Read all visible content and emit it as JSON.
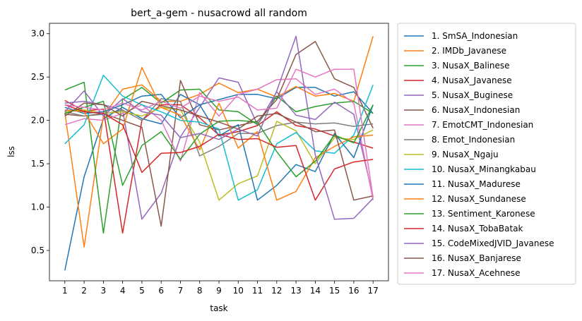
{
  "chart_data": {
    "type": "line",
    "title": "bert_a-gem - nusacrowd all random",
    "xlabel": "task",
    "ylabel": "lss",
    "x": [
      1,
      2,
      3,
      4,
      5,
      6,
      7,
      8,
      9,
      10,
      11,
      12,
      13,
      14,
      15,
      16,
      17
    ],
    "xlim": [
      0.2,
      17.8
    ],
    "ylim": [
      0.15,
      3.12
    ],
    "yticks": [
      0.5,
      1.0,
      1.5,
      2.0,
      2.5,
      3.0
    ],
    "ytick_labels": [
      "0.5",
      "1.0",
      "1.5",
      "2.0",
      "2.5",
      "3.0"
    ],
    "legend_position": "outside-right",
    "series": [
      {
        "name": "1. SmSA_Indonesian",
        "color": "#1f77b4",
        "values": [
          0.27,
          1.35,
          2.02,
          2.15,
          2.02,
          1.96,
          2.3,
          2.18,
          2.24,
          2.3,
          2.3,
          2.25,
          2.38,
          2.38,
          2.28,
          2.33,
          2.08
        ]
      },
      {
        "name": "2. IMDb_Javanese",
        "color": "#ff7f0e",
        "values": [
          2.09,
          0.54,
          2.05,
          2.36,
          2.41,
          2.22,
          2.22,
          2.3,
          2.43,
          2.32,
          2.36,
          2.27,
          2.39,
          2.28,
          2.31,
          2.22,
          2.97
        ]
      },
      {
        "name": "3. NusaX_Balinese",
        "color": "#2ca02c",
        "values": [
          2.35,
          2.44,
          0.7,
          2.24,
          2.38,
          2.2,
          2.35,
          2.36,
          2.12,
          2.1,
          1.95,
          2.28,
          2.1,
          2.16,
          2.2,
          2.22,
          2.08
        ]
      },
      {
        "name": "4. NusaX_Javanese",
        "color": "#d62728",
        "values": [
          2.23,
          2.11,
          2.13,
          0.7,
          2.0,
          2.18,
          2.18,
          2.03,
          1.83,
          1.87,
          1.94,
          2.1,
          1.94,
          1.9,
          1.82,
          1.75,
          1.68
        ]
      },
      {
        "name": "5. NusaX_Buginese",
        "color": "#9467bd",
        "values": [
          2.2,
          2.22,
          2.18,
          2.12,
          0.86,
          1.16,
          1.81,
          2.15,
          2.49,
          2.44,
          1.95,
          2.33,
          2.06,
          2.01,
          2.21,
          2.07,
          1.12
        ]
      },
      {
        "name": "6. NusaX_Indonesian",
        "color": "#8c564b",
        "values": [
          2.07,
          2.05,
          2.08,
          2.0,
          1.92,
          0.78,
          2.46,
          1.95,
          1.89,
          1.94,
          1.99,
          2.24,
          2.76,
          2.91,
          2.48,
          2.38,
          1.91
        ]
      },
      {
        "name": "7. EmotCMT_Indonesian",
        "color": "#e377c2",
        "values": [
          1.95,
          2.02,
          2.0,
          2.08,
          2.18,
          2.0,
          1.53,
          2.32,
          2.05,
          2.3,
          2.36,
          2.47,
          2.48,
          2.3,
          2.36,
          2.2,
          1.08
        ]
      },
      {
        "name": "8. Emot_Indonesian",
        "color": "#7f7f7f",
        "values": [
          2.1,
          2.05,
          2.07,
          2.12,
          2.0,
          2.25,
          2.22,
          1.59,
          1.7,
          1.85,
          1.85,
          1.94,
          1.98,
          1.96,
          1.97,
          1.93,
          1.96
        ]
      },
      {
        "name": "9. NusaX_Ngaju",
        "color": "#bcbd22",
        "values": [
          2.1,
          2.12,
          2.08,
          2.1,
          2.05,
          2.15,
          2.12,
          1.75,
          1.08,
          1.27,
          1.36,
          1.99,
          1.88,
          1.5,
          1.8,
          1.78,
          1.89
        ]
      },
      {
        "name": "10. NusaX_Minangkabau",
        "color": "#17becf",
        "values": [
          1.73,
          1.95,
          2.52,
          2.28,
          2.18,
          2.1,
          2.0,
          1.98,
          1.9,
          1.08,
          1.2,
          1.73,
          1.86,
          1.65,
          1.62,
          1.83,
          2.41
        ]
      },
      {
        "name": "11. NusaX_Madurese",
        "color": "#1f77b4",
        "values": [
          2.15,
          2.08,
          2.1,
          2.18,
          2.28,
          2.3,
          2.03,
          2.18,
          1.82,
          1.95,
          1.08,
          1.25,
          1.49,
          1.41,
          1.85,
          1.57,
          2.18
        ]
      },
      {
        "name": "12. NusaX_Sundanese",
        "color": "#ff7f0e",
        "values": [
          2.12,
          2.1,
          1.73,
          1.9,
          2.61,
          2.15,
          2.06,
          1.66,
          2.2,
          1.68,
          1.87,
          1.08,
          1.18,
          1.57,
          1.7,
          1.81,
          1.83
        ]
      },
      {
        "name": "13. Sentiment_Karonese",
        "color": "#2ca02c",
        "values": [
          2.08,
          2.15,
          2.22,
          1.25,
          1.71,
          1.87,
          1.55,
          1.84,
          1.99,
          2.0,
          1.98,
          1.64,
          1.35,
          1.53,
          1.83,
          1.74,
          2.18
        ]
      },
      {
        "name": "14. NusaX_TobaBatak",
        "color": "#d62728",
        "values": [
          2.18,
          2.1,
          2.08,
          1.95,
          1.4,
          1.62,
          1.63,
          1.7,
          1.84,
          1.78,
          1.79,
          1.69,
          1.71,
          1.08,
          1.44,
          1.52,
          1.55
        ]
      },
      {
        "name": "15. CodeMixedJVID_Javanese",
        "color": "#9467bd",
        "values": [
          2.1,
          2.34,
          2.05,
          2.25,
          2.1,
          2.06,
          1.8,
          1.85,
          1.78,
          1.9,
          1.82,
          2.34,
          2.97,
          1.6,
          0.86,
          0.87,
          1.1
        ]
      },
      {
        "name": "16. NusaX_Banjarese",
        "color": "#8c564b",
        "values": [
          2.05,
          2.2,
          2.18,
          2.05,
          2.22,
          2.17,
          2.12,
          2.05,
          1.98,
          1.9,
          2.05,
          2.08,
          1.98,
          1.87,
          1.89,
          1.08,
          1.13
        ]
      },
      {
        "name": "17. NusaX_Acehnese",
        "color": "#e377c2",
        "values": [
          2.18,
          2.15,
          2.12,
          2.2,
          2.12,
          2.22,
          2.14,
          2.28,
          2.22,
          2.27,
          2.12,
          2.14,
          2.59,
          2.5,
          2.59,
          2.59,
          1.11
        ]
      }
    ]
  }
}
